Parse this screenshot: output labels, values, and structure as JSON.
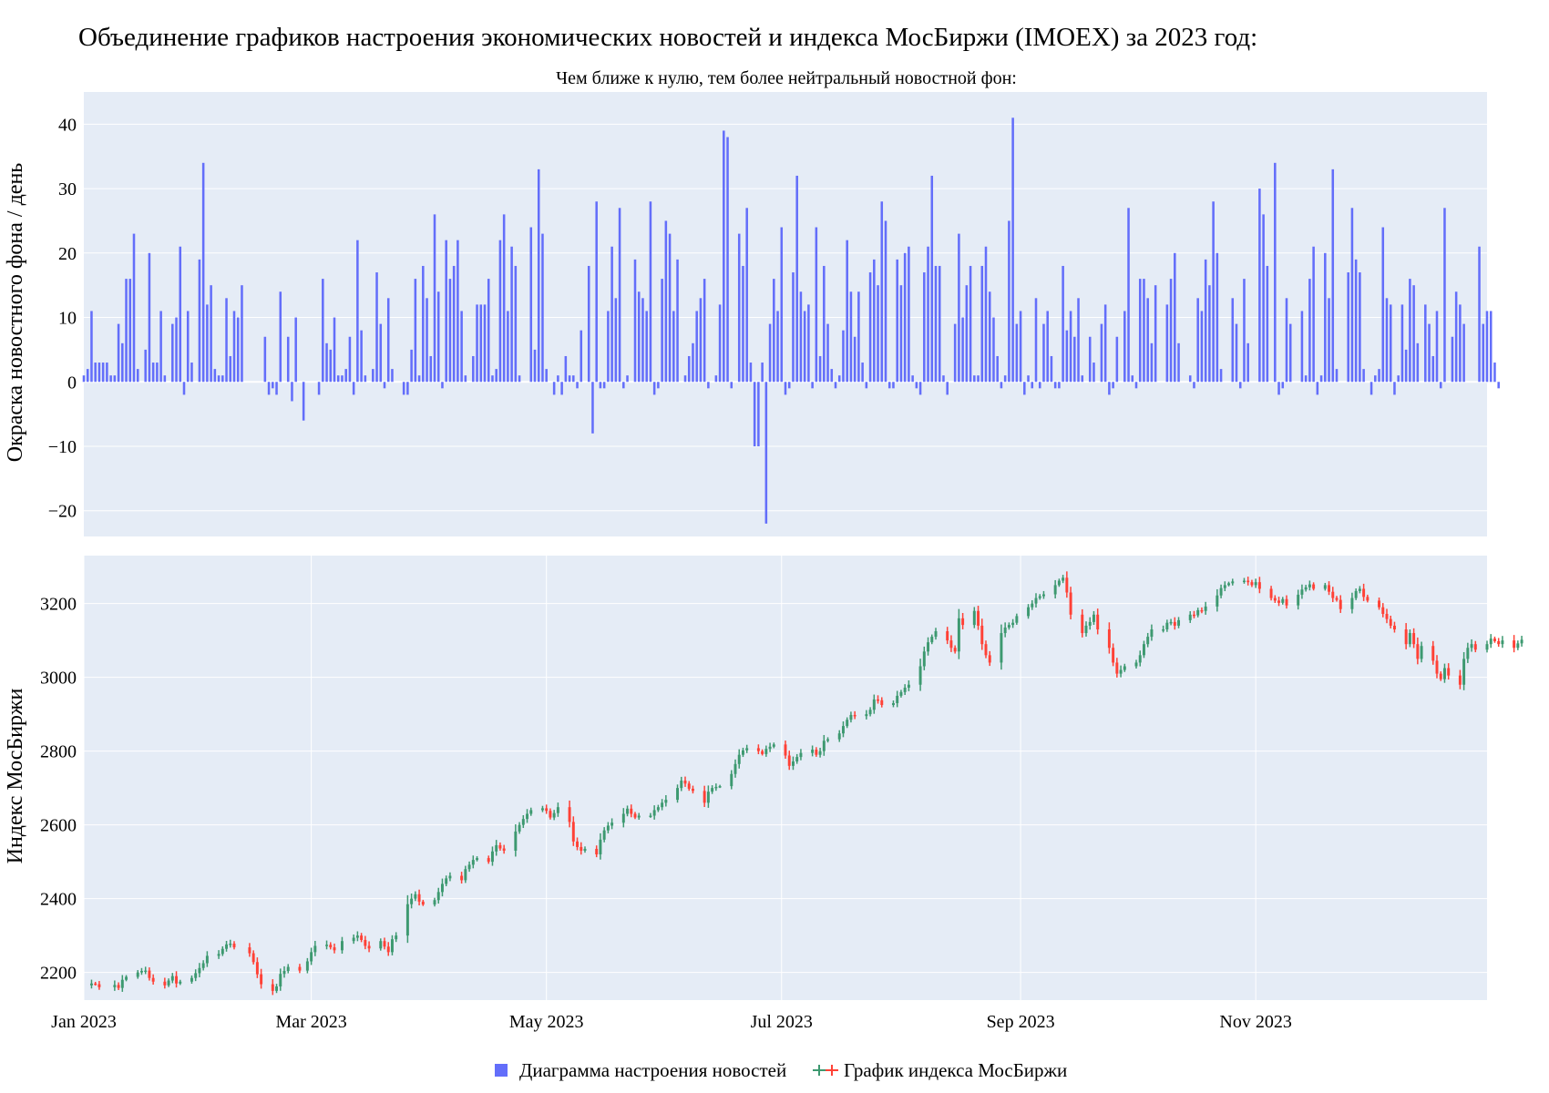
{
  "chart_data": {
    "type": "bar+candlestick",
    "title": "Объединение графиков настроения экономических новостей и индекса МосБиржи (IMOEX) за 2023 год:",
    "subplots": [
      {
        "id": "news",
        "type": "bar",
        "subtitle": "Чем ближе к нулю, тем более нейтральный новостной фон:",
        "ylabel": "Окраска новостного фона / день",
        "ylim": [
          -24,
          45
        ],
        "yticks": [
          -20,
          -10,
          0,
          10,
          20,
          30,
          40
        ],
        "ytick_labels": [
          "−20",
          "−10",
          "0",
          "10",
          "20",
          "30",
          "40"
        ],
        "grid": true,
        "series": [
          {
            "name": "Диаграмма настроения новостей",
            "color": "#636efa",
            "x_start": "2023-01-01",
            "x_step_days": 1,
            "values": [
              1,
              2,
              11,
              3,
              3,
              3,
              3,
              1,
              1,
              9,
              6,
              16,
              16,
              23,
              2,
              null,
              5,
              20,
              3,
              3,
              11,
              1,
              null,
              9,
              10,
              21,
              -2,
              11,
              3,
              null,
              19,
              34,
              12,
              15,
              2,
              1,
              1,
              13,
              4,
              11,
              10,
              15,
              null,
              null,
              null,
              null,
              null,
              7,
              -2,
              -1,
              -2,
              14,
              null,
              7,
              -3,
              10,
              null,
              -6,
              null,
              null,
              null,
              -2,
              16,
              6,
              5,
              10,
              1,
              1,
              2,
              7,
              -2,
              22,
              8,
              1,
              null,
              2,
              17,
              9,
              -1,
              13,
              2,
              null,
              null,
              -2,
              -2,
              5,
              16,
              1,
              18,
              13,
              4,
              26,
              14,
              -1,
              22,
              16,
              18,
              22,
              11,
              1,
              null,
              4,
              12,
              12,
              12,
              16,
              1,
              2,
              22,
              26,
              11,
              21,
              18,
              1,
              null,
              null,
              24,
              5,
              33,
              23,
              2,
              null,
              -2,
              1,
              -2,
              4,
              1,
              1,
              -1,
              8,
              null,
              18,
              -8,
              28,
              -1,
              -1,
              11,
              21,
              13,
              27,
              -1,
              1,
              null,
              19,
              14,
              13,
              11,
              28,
              -2,
              -1,
              16,
              25,
              23,
              11,
              19,
              null,
              1,
              4,
              6,
              11,
              13,
              16,
              -1,
              null,
              1,
              12,
              39,
              38,
              -1,
              null,
              23,
              18,
              27,
              3,
              -10,
              -10,
              3,
              -22,
              9,
              16,
              11,
              24,
              -2,
              -1,
              17,
              32,
              14,
              11,
              12,
              -1,
              24,
              4,
              18,
              9,
              2,
              -1,
              1,
              8,
              22,
              14,
              7,
              14,
              3,
              -1,
              17,
              19,
              15,
              28,
              25,
              -1,
              -1,
              19,
              15,
              20,
              21,
              1,
              -1,
              -2,
              17,
              21,
              32,
              18,
              18,
              1,
              -2,
              null,
              9,
              23,
              10,
              15,
              18,
              1,
              1,
              18,
              21,
              14,
              10,
              4,
              -1,
              1,
              25,
              41,
              9,
              11,
              -2,
              1,
              -1,
              13,
              -1,
              9,
              11,
              4,
              -1,
              -1,
              18,
              8,
              11,
              7,
              13,
              1,
              null,
              7,
              3,
              null,
              9,
              12,
              -2,
              -1,
              7,
              null,
              11,
              27,
              1,
              -1,
              16,
              16,
              13,
              6,
              15,
              null,
              null,
              12,
              16,
              20,
              6,
              null,
              null,
              1,
              -1,
              13,
              11,
              19,
              15,
              28,
              20,
              2,
              null,
              null,
              13,
              9,
              -1,
              16,
              6,
              null,
              null,
              30,
              26,
              18,
              null,
              34,
              -2,
              -1,
              13,
              9,
              null,
              null,
              11,
              1,
              16,
              21,
              -2,
              1,
              20,
              13,
              33,
              2,
              null,
              null,
              17,
              27,
              19,
              17,
              2,
              null,
              -2,
              1,
              2,
              24,
              13,
              12,
              -2,
              1,
              12,
              5,
              16,
              15,
              6,
              null,
              12,
              9,
              4,
              11,
              -1,
              27,
              null,
              7,
              14,
              12,
              9,
              null,
              null,
              null,
              21,
              9,
              11,
              11,
              3,
              -1
            ]
          }
        ]
      },
      {
        "id": "imoex",
        "type": "candlestick",
        "ylabel": "Индекс МосБиржи",
        "ylim": [
          2125,
          3330
        ],
        "yticks": [
          2200,
          2400,
          2600,
          2800,
          3000,
          3200
        ],
        "ytick_labels": [
          "2200",
          "2400",
          "2600",
          "2800",
          "3000",
          "3200"
        ],
        "grid": true,
        "series": [
          {
            "name": "График индекса МосБиржи",
            "increasing_color": "#3d9970",
            "decreasing_color": "#ff4136",
            "x_start": "2023-01-01",
            "x_step_days": 1,
            "close_values": [
              null,
              null,
              2170,
              2168,
              2160,
              null,
              null,
              null,
              2166,
              2158,
              2180,
              2188,
              null,
              null,
              2200,
              2204,
              2205,
              2185,
              2175,
              null,
              null,
              2165,
              2178,
              2190,
              2170,
              2175,
              null,
              null,
              2185,
              2198,
              2212,
              2225,
              2245,
              null,
              null,
              2250,
              2264,
              2276,
              2278,
              2268,
              null,
              null,
              null,
              2252,
              2228,
              2195,
              2168,
              null,
              null,
              2150,
              2162,
              2196,
              2204,
              2215,
              null,
              null,
              2205,
              null,
              2230,
              2255,
              2272,
              null,
              null,
              2275,
              2268,
              2260,
              null,
              2285,
              null,
              null,
              2294,
              2300,
              2288,
              2272,
              2265,
              null,
              null,
              2285,
              2270,
              2255,
              2290,
              2300,
              null,
              null,
              2385,
              2400,
              2412,
              2392,
              2384,
              null,
              null,
              2396,
              2418,
              2440,
              2455,
              2462,
              null,
              null,
              2450,
              2480,
              2492,
              2505,
              2510,
              null,
              null,
              2500,
              2528,
              2545,
              2536,
              2530,
              null,
              null,
              2582,
              2600,
              2616,
              2630,
              2640,
              null,
              null,
              2645,
              2638,
              2620,
              2632,
              2648,
              null,
              null,
              2608,
              2555,
              2540,
              2530,
              2535,
              null,
              null,
              2520,
              2560,
              2585,
              2598,
              2606,
              null,
              null,
              2630,
              2644,
              2630,
              2620,
              2625,
              null,
              null,
              2625,
              2640,
              2648,
              2660,
              2668,
              null,
              null,
              2700,
              2720,
              2712,
              2698,
              2692,
              null,
              null,
              2660,
              2690,
              2700,
              2703,
              2705,
              null,
              null,
              2738,
              2765,
              2790,
              2802,
              2808,
              null,
              null,
              2800,
              2792,
              2806,
              2812,
              2818,
              null,
              null,
              2788,
              2760,
              2772,
              2784,
              2795,
              null,
              null,
              2804,
              2790,
              2800,
              2828,
              2832,
              null,
              null,
              2848,
              2868,
              2885,
              2898,
              2895,
              null,
              null,
              2900,
              2912,
              2940,
              2938,
              2925,
              null,
              null,
              2930,
              2950,
              2960,
              2972,
              2980,
              null,
              null,
              3030,
              3070,
              3095,
              3110,
              3125,
              null,
              null,
              3100,
              3080,
              3070,
              3160,
              3142,
              null,
              null,
              3180,
              3140,
              3090,
              3060,
              3040,
              null,
              null,
              3120,
              3135,
              3142,
              3148,
              3166,
              null,
              null,
              3190,
              3200,
              3215,
              3220,
              3225,
              null,
              null,
              3250,
              3262,
              3270,
              3230,
              3170,
              null,
              null,
              3120,
              3140,
              3150,
              3170,
              3130,
              null,
              null,
              3080,
              3040,
              3010,
              3020,
              3030,
              null,
              null,
              3040,
              3060,
              3090,
              3110,
              3130,
              null,
              null,
              3130,
              3148,
              3150,
              3140,
              3155,
              null,
              null,
              3170,
              3168,
              3182,
              3180,
              3192,
              null,
              null,
              3222,
              3242,
              3250,
              3255,
              3260,
              null,
              null,
              3262,
              3258,
              3250,
              3258,
              3240,
              null,
              null,
              3215,
              3208,
              3202,
              3212,
              3195,
              null,
              null,
              3224,
              3238,
              3244,
              3252,
              3240,
              null,
              null,
              3250,
              3232,
              3215,
              3210,
              3185,
              null,
              null,
              3215,
              3234,
              3240,
              3218,
              3208,
              null,
              null,
              3190,
              3172,
              3158,
              3140,
              3130,
              null,
              null,
              3090,
              3120,
              3090,
              3050,
              3085,
              null,
              null,
              3045,
              3010,
              2995,
              3025,
              3005,
              null,
              null,
              2980,
              3050,
              3080,
              3090,
              3075,
              null,
              null,
              3090,
              3105,
              3098,
              3090,
              3100,
              null,
              null,
              3080,
              3092,
              3102
            ]
          }
        ]
      }
    ],
    "xticks": [
      "2023-01-01",
      "2023-03-01",
      "2023-05-01",
      "2023-07-01",
      "2023-09-01",
      "2023-11-01"
    ],
    "xtick_labels": [
      "Jan 2023",
      "Mar 2023",
      "May 2023",
      "Jul 2023",
      "Sep 2023",
      "Nov 2023"
    ],
    "xlim": [
      "2023-01-01",
      "2023-12-31"
    ],
    "legend": {
      "placement": "bottom-center",
      "items": [
        "Диаграмма настроения новостей",
        "График индекса МосБиржи"
      ]
    },
    "background_color": "#e5ecf6",
    "gridline_color": "#ffffff"
  }
}
